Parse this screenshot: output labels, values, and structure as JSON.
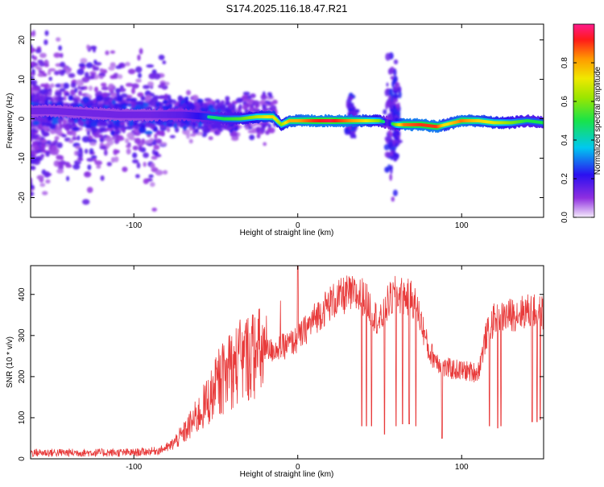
{
  "title": "S174.2025.116.18.47.R21",
  "chart_data": [
    {
      "type": "heatmap",
      "xlabel": "Height of straight line (km)",
      "ylabel": "Frequency (Hz)",
      "xlim": [
        -163,
        150
      ],
      "ylim": [
        -25,
        24
      ],
      "xticks": [
        -100,
        0,
        100
      ],
      "yticks": [
        -20,
        -10,
        0,
        10,
        20
      ],
      "colorbar": {
        "label": "Normalized spectral amplitude",
        "range": [
          0,
          1
        ],
        "ticks": [
          0.0,
          0.2,
          0.4,
          0.6,
          0.8
        ],
        "tick_labels": [
          "0.0",
          "0.2",
          "0.4",
          "0.6",
          "0.8"
        ]
      },
      "ridge": {
        "x": [
          -163,
          -150,
          -130,
          -110,
          -90,
          -70,
          -55,
          -45,
          -35,
          -25,
          -15,
          -10,
          -5,
          0,
          10,
          20,
          30,
          40,
          50,
          55,
          60,
          65,
          75,
          85,
          90,
          100,
          110,
          120,
          130,
          140,
          150
        ],
        "y": [
          2,
          2,
          1.5,
          1,
          1,
          1,
          0.5,
          0,
          0,
          0.5,
          0.5,
          -1.5,
          -0.5,
          -0.5,
          -0.5,
          -0.5,
          -0.5,
          -0.5,
          -0.5,
          -1,
          -1.5,
          -1.5,
          -1.5,
          -2,
          -1.5,
          -0.5,
          -0.5,
          -1,
          -1,
          -0.5,
          -1
        ],
        "amplitude": [
          0.25,
          0.25,
          0.25,
          0.25,
          0.25,
          0.3,
          0.45,
          0.5,
          0.55,
          0.65,
          0.75,
          0.6,
          0.8,
          0.8,
          0.9,
          0.95,
          0.85,
          0.75,
          0.6,
          0.3,
          0.6,
          0.85,
          0.9,
          0.9,
          0.7,
          0.85,
          0.75,
          0.7,
          0.6,
          0.5,
          0.5
        ]
      }
    },
    {
      "type": "line",
      "xlabel": "Height of straight line (km)",
      "ylabel": "SNR (10 * v/v)",
      "xlim": [
        -163,
        150
      ],
      "ylim": [
        0,
        470
      ],
      "xticks": [
        -100,
        0,
        100
      ],
      "yticks": [
        0,
        100,
        200,
        300,
        400
      ],
      "line_color": "#e83a3a",
      "series": [
        {
          "x": [
            -163,
            -140,
            -120,
            -100,
            -85,
            -78,
            -70,
            -60,
            -50,
            -40,
            -30,
            -20,
            -10,
            0,
            10,
            20,
            30,
            40,
            50,
            55,
            60,
            70,
            75,
            80,
            85,
            90,
            100,
            110,
            115,
            120,
            130,
            140,
            150
          ],
          "y": [
            15,
            15,
            15,
            15,
            20,
            30,
            60,
            110,
            170,
            220,
            250,
            260,
            270,
            290,
            340,
            380,
            400,
            395,
            330,
            380,
            400,
            390,
            340,
            260,
            240,
            220,
            215,
            210,
            300,
            340,
            350,
            360,
            355
          ]
        }
      ],
      "dropouts": [
        {
          "x": 39,
          "y": 80
        },
        {
          "x": 42,
          "y": 80
        },
        {
          "x": 45,
          "y": 80
        },
        {
          "x": 53,
          "y": 60
        },
        {
          "x": 60,
          "y": 80
        },
        {
          "x": 64,
          "y": 85
        },
        {
          "x": 68,
          "y": 85
        },
        {
          "x": 72,
          "y": 80
        },
        {
          "x": 88,
          "y": 50
        },
        {
          "x": 117,
          "y": 80
        },
        {
          "x": 122,
          "y": 75
        },
        {
          "x": 124,
          "y": 80
        },
        {
          "x": 143,
          "y": 90
        },
        {
          "x": 146,
          "y": 90
        },
        {
          "x": 148,
          "y": 95
        }
      ]
    }
  ]
}
